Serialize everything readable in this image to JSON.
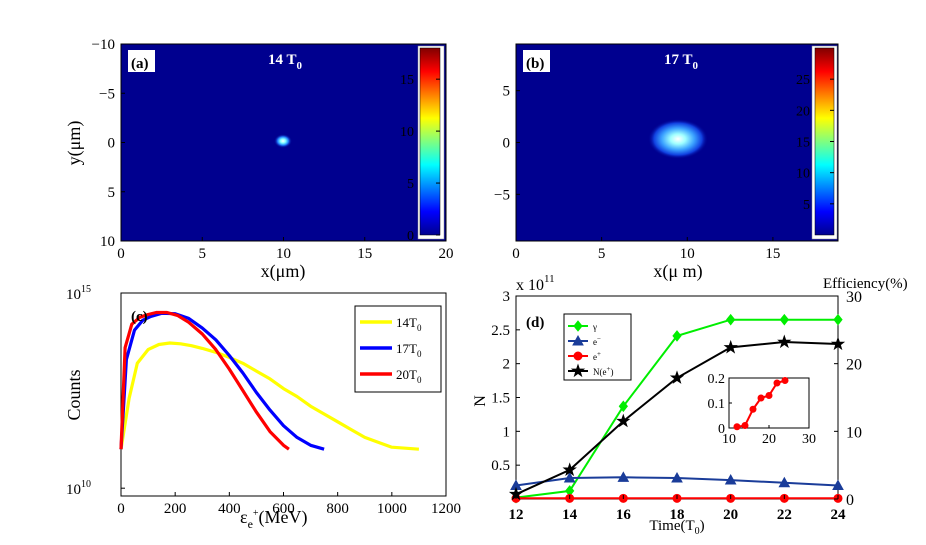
{
  "chart_data": [
    {
      "panel": "(a)",
      "type": "heatmap",
      "title": "14 T",
      "title_sub": "0",
      "xlabel": "x(μm)",
      "ylabel": "y(μm)",
      "xlim": [
        0,
        20
      ],
      "ylim": [
        -10,
        10
      ],
      "xticks": [
        "0",
        "5",
        "10",
        "15",
        "20"
      ],
      "yticks": [
        "−10",
        "−5",
        "0",
        "5",
        "10"
      ],
      "colorbar": {
        "min": 0,
        "max": 18,
        "ticks": [
          "0",
          "5",
          "10",
          "15"
        ]
      },
      "blob": {
        "cx": 10,
        "cy": 0,
        "size": "small"
      }
    },
    {
      "panel": "(b)",
      "type": "heatmap",
      "title": "17 T",
      "title_sub": "0",
      "xlabel": "x(μ m)",
      "ylabel": "",
      "xlim": [
        0,
        18.8
      ],
      "ylim": [
        -9.5,
        9.5
      ],
      "xticks": [
        "0",
        "5",
        "10",
        "15"
      ],
      "yticks": [
        "5",
        "0",
        "−5"
      ],
      "colorbar": {
        "min": 0,
        "max": 30,
        "ticks": [
          "5",
          "10",
          "15",
          "20",
          "25"
        ]
      },
      "blob": {
        "cx": 9.5,
        "cy": 0,
        "size": "large"
      }
    },
    {
      "panel": "(c)",
      "type": "line",
      "xlabel_main": "ε",
      "xlabel_sub": "e",
      "xlabel_sup": "+",
      "xlabel_tail": "(MeV)",
      "ylabel": "Counts",
      "xlim": [
        0,
        1200
      ],
      "xticks": [
        "0",
        "200",
        "400",
        "600",
        "800",
        "1000",
        "1200"
      ],
      "yticks": [
        {
          "base": "10",
          "exp": "15"
        },
        {
          "base": "10",
          "exp": "10"
        }
      ],
      "ylog_range": [
        10,
        15
      ],
      "series": [
        {
          "name": "14T",
          "sub": "0",
          "color": "#ffff00",
          "x": [
            0,
            30,
            60,
            100,
            140,
            180,
            220,
            260,
            300,
            350,
            400,
            450,
            500,
            550,
            600,
            650,
            700,
            750,
            800,
            850,
            900,
            1000,
            1100
          ],
          "y": [
            11.0,
            12.3,
            13.2,
            13.55,
            13.68,
            13.72,
            13.7,
            13.65,
            13.58,
            13.48,
            13.35,
            13.2,
            13.0,
            12.8,
            12.55,
            12.35,
            12.1,
            11.9,
            11.7,
            11.5,
            11.3,
            11.05,
            11.0
          ]
        },
        {
          "name": "17T",
          "sub": "0",
          "color": "#0000ff",
          "x": [
            0,
            20,
            50,
            80,
            110,
            150,
            200,
            250,
            300,
            350,
            400,
            450,
            500,
            550,
            600,
            650,
            700,
            750
          ],
          "y": [
            11.0,
            13.3,
            14.05,
            14.3,
            14.4,
            14.48,
            14.47,
            14.35,
            14.1,
            13.8,
            13.4,
            12.95,
            12.45,
            12.0,
            11.6,
            11.3,
            11.1,
            11.0
          ]
        },
        {
          "name": "20T",
          "sub": "0",
          "color": "#ff0000",
          "x": [
            0,
            15,
            40,
            70,
            100,
            130,
            170,
            210,
            250,
            300,
            350,
            400,
            450,
            500,
            550,
            600,
            620
          ],
          "y": [
            11.0,
            13.6,
            14.2,
            14.38,
            14.45,
            14.5,
            14.5,
            14.42,
            14.25,
            13.95,
            13.55,
            13.05,
            12.5,
            11.95,
            11.45,
            11.1,
            11.0
          ]
        }
      ]
    },
    {
      "panel": "(d)",
      "type": "line",
      "xlabel": "Time(T",
      "xlabel_sub": "0",
      "xlabel_tail": ")",
      "ylabel": "N",
      "y2label": "Efficiency(%)",
      "xlim": [
        12,
        24
      ],
      "xticks": [
        "12",
        "14",
        "16",
        "18",
        "20",
        "22",
        "24"
      ],
      "ylim": [
        0,
        3
      ],
      "yticks": [
        "0.5",
        "1",
        "1.5",
        "2",
        "2.5",
        "3"
      ],
      "yscale": "x 10",
      "yscale_exp": "11",
      "y2lim": [
        0,
        30
      ],
      "y2ticks": [
        "0",
        "10",
        "20",
        "30"
      ],
      "series": [
        {
          "name": "γ",
          "color": "#00ee00",
          "marker": "diamond",
          "axis": "left",
          "x": [
            12,
            14,
            16,
            18,
            20,
            22,
            24
          ],
          "y": [
            0.02,
            0.12,
            1.37,
            2.41,
            2.65,
            2.65,
            2.65
          ]
        },
        {
          "name": "e",
          "sup": "−",
          "color": "#1a3c99",
          "marker": "triangle",
          "axis": "left",
          "x": [
            12,
            14,
            16,
            18,
            20,
            22,
            24
          ],
          "y": [
            0.2,
            0.31,
            0.32,
            0.31,
            0.28,
            0.24,
            0.2
          ]
        },
        {
          "name": "e",
          "sup": "+",
          "color": "#ff0000",
          "marker": "circle",
          "axis": "left",
          "x": [
            12,
            14,
            16,
            18,
            20,
            22,
            24
          ],
          "y": [
            0.01,
            0.01,
            0.01,
            0.01,
            0.01,
            0.01,
            0.01
          ]
        },
        {
          "name": "N(e",
          "sup": "+",
          "tail": ")",
          "color": "#000000",
          "marker": "star",
          "axis": "right",
          "x": [
            12,
            14,
            16,
            18,
            20,
            22,
            24
          ],
          "y": [
            0.7,
            4.3,
            11.5,
            17.9,
            22.4,
            23.2,
            22.9
          ]
        }
      ],
      "inset": {
        "xlim": [
          10,
          30
        ],
        "ylim": [
          0,
          0.2
        ],
        "xticks": [
          "10",
          "20",
          "30"
        ],
        "yticks": [
          "0",
          "0.1",
          "0.2"
        ],
        "color": "#ff0000",
        "x": [
          12,
          14,
          16,
          18,
          20,
          22,
          24
        ],
        "y": [
          0.005,
          0.01,
          0.075,
          0.12,
          0.13,
          0.18,
          0.19
        ]
      }
    }
  ]
}
